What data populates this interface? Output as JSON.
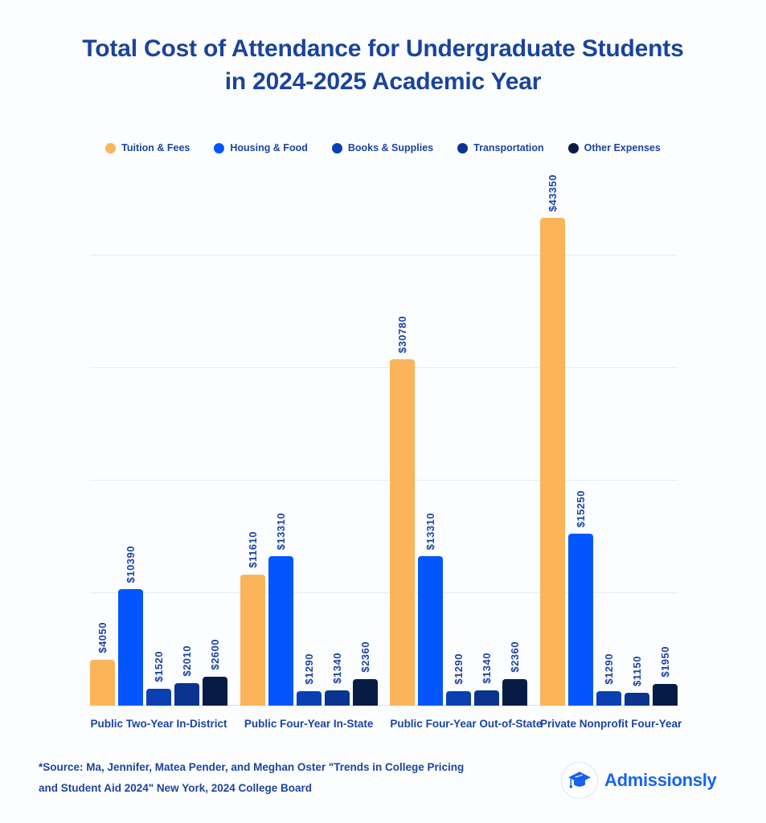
{
  "title": {
    "line1": "Total Cost of Attendance for Undergraduate Students",
    "line2": "in 2024-2025 Academic Year"
  },
  "legend": [
    {
      "label": "Tuition & Fees",
      "color": "#FBB45A"
    },
    {
      "label": "Housing & Food",
      "color": "#0356FB"
    },
    {
      "label": "Books & Supplies",
      "color": "#0B40B4"
    },
    {
      "label": "Transportation",
      "color": "#0B3390"
    },
    {
      "label": "Other Expenses",
      "color": "#071C45"
    }
  ],
  "chart_data": {
    "type": "bar",
    "title": "Total Cost of Attendance for Undergraduate Students in 2024-2025 Academic Year",
    "categories": [
      "Public Two-Year In-District",
      "Public Four-Year In-State",
      "Public Four-Year Out-of-State",
      "Private Nonprofit Four-Year"
    ],
    "series": [
      {
        "name": "Tuition & Fees",
        "color": "#FBB45A",
        "values": [
          4050,
          11610,
          30780,
          43350
        ]
      },
      {
        "name": "Housing & Food",
        "color": "#0356FB",
        "values": [
          10390,
          13310,
          13310,
          15250
        ]
      },
      {
        "name": "Books & Supplies",
        "color": "#0B40B4",
        "values": [
          1520,
          1290,
          1290,
          1290
        ]
      },
      {
        "name": "Transportation",
        "color": "#0B3390",
        "values": [
          2010,
          1340,
          1340,
          1150
        ]
      },
      {
        "name": "Other Expenses",
        "color": "#071C45",
        "values": [
          2600,
          2360,
          2360,
          1950
        ]
      }
    ],
    "value_label_prefix": "$",
    "xlabel": "",
    "ylabel": "",
    "ylim": [
      0,
      45700
    ],
    "gridline_interval": 10000,
    "grid": true,
    "legend_position": "top",
    "y_axis_tick_labels_visible": false
  },
  "source_note": {
    "line1": "*Source: Ma, Jennifer, Matea Pender, and Meghan Oster \"Trends in College Pricing",
    "line2": "and Student Aid 2024\" New York, 2024 College Board"
  },
  "logo": {
    "text": "Admissionsly",
    "icon": "graduation-cap",
    "accent_color": "#1765F0"
  }
}
